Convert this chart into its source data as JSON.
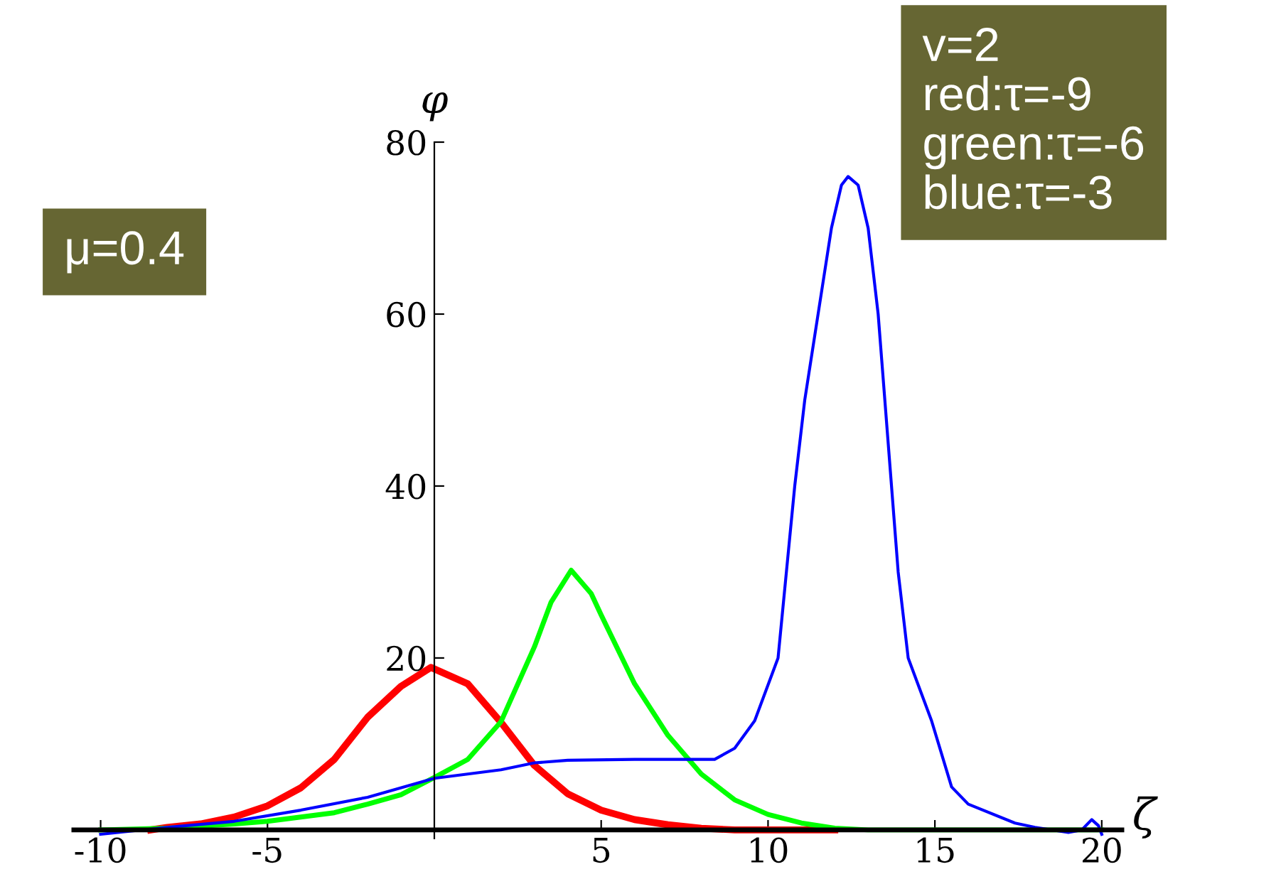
{
  "chart_data": {
    "type": "line",
    "xlabel": "ζ",
    "ylabel": "φ",
    "xlim": [
      -10.8,
      20.6
    ],
    "ylim": [
      -1,
      80
    ],
    "xticks": [
      -10,
      -5,
      5,
      10,
      15,
      20
    ],
    "yticks": [
      20,
      40,
      60,
      80
    ],
    "grid": false,
    "legend": false,
    "annotations": [
      "v=2\nred:τ=-9\ngreen:τ=-6\nblue:τ=-3",
      "μ=0.4"
    ],
    "series": [
      {
        "color": "#ff0000",
        "x": [
          -8.5,
          -8,
          -7,
          -6,
          -5,
          -4,
          -3,
          -2,
          -1,
          -0.1,
          1,
          2,
          3,
          4,
          5,
          6,
          7,
          8,
          9,
          12
        ],
        "values": [
          0,
          0.3,
          0.7,
          1.5,
          2.8,
          4.9,
          8.2,
          13.1,
          16.7,
          18.9,
          17,
          12.5,
          7.5,
          4.2,
          2.3,
          1.2,
          0.6,
          0.2,
          0,
          0
        ]
      },
      {
        "color": "#00ff00",
        "x": [
          -10,
          -8,
          -6,
          -5,
          -4,
          -3,
          -2,
          -1,
          0,
          1,
          2,
          3,
          3.5,
          4.1,
          4.7,
          5,
          6,
          7,
          8,
          9,
          10,
          11,
          12,
          13,
          20
        ],
        "values": [
          0,
          0.2,
          0.7,
          1.0,
          1.5,
          2,
          3,
          4.1,
          6.1,
          8.2,
          12.6,
          21.3,
          26.5,
          30.2,
          27.5,
          25,
          17,
          11,
          6.5,
          3.5,
          1.8,
          0.8,
          0.2,
          0,
          0
        ]
      },
      {
        "color": "#0000ff",
        "x": [
          -10,
          -8,
          -6,
          -4,
          -2,
          0,
          2,
          3,
          4,
          6,
          8.4,
          9,
          9.6,
          10.3,
          10.8,
          11.1,
          11.5,
          11.9,
          12.2,
          12.4,
          12.7,
          13,
          13.3,
          13.7,
          13.9,
          14.2,
          14.9,
          15.5,
          16,
          17.4,
          18,
          19,
          19.4,
          19.7,
          19.9,
          20
        ],
        "values": [
          -0.5,
          0.3,
          1,
          2.3,
          3.8,
          6,
          7,
          7.8,
          8.1,
          8.2,
          8.2,
          9.5,
          12.7,
          20,
          40,
          50,
          60,
          70,
          75,
          76,
          75,
          70,
          60,
          40,
          30,
          20,
          12.7,
          5,
          3,
          0.8,
          0.3,
          -0.3,
          0,
          1.2,
          0.5,
          -0.5
        ]
      }
    ]
  }
}
